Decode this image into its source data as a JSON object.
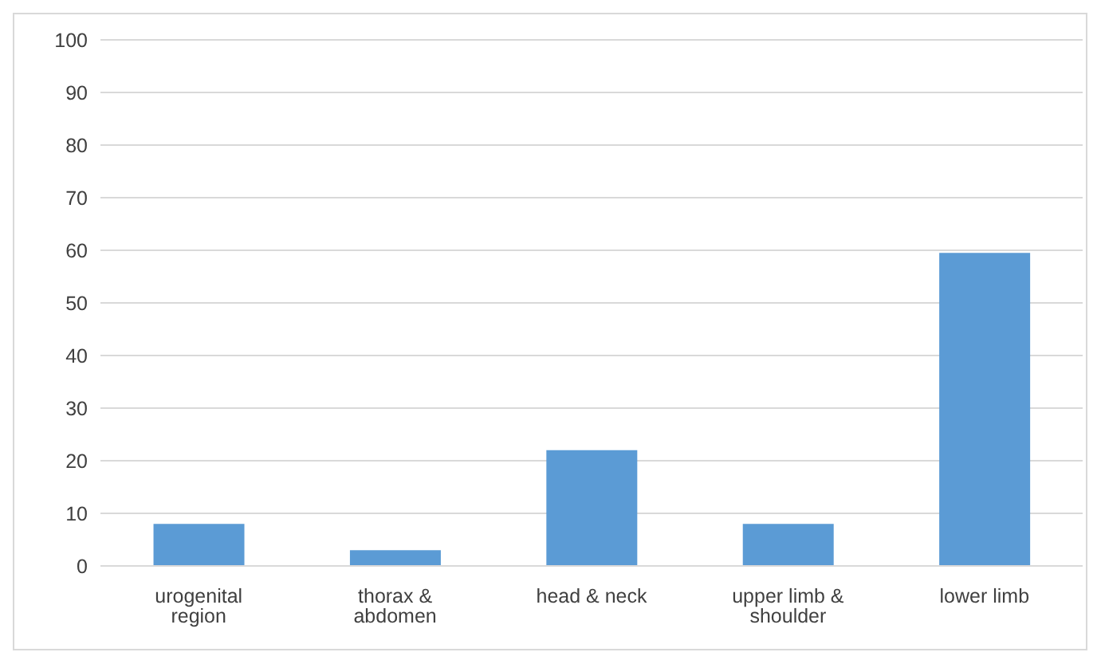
{
  "chart_data": {
    "type": "bar",
    "categories": [
      "urogenital region",
      "thorax & abdomen",
      "head & neck",
      "upper limb & shoulder",
      "lower limb"
    ],
    "values": [
      8,
      3,
      22,
      8,
      59.5
    ],
    "color": "#5b9bd5",
    "ylim": [
      0,
      100
    ],
    "yticks": [
      0,
      10,
      20,
      30,
      40,
      50,
      60,
      70,
      80,
      90,
      100
    ],
    "grid": "y"
  }
}
